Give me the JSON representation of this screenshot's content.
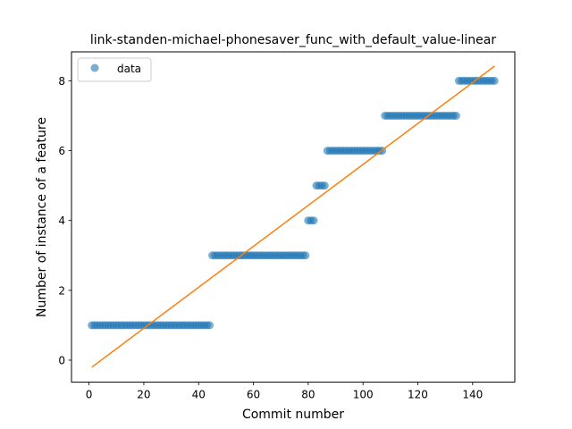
{
  "chart_data": {
    "type": "scatter",
    "title": "link-standen-michael-phonesaver_func_with_default_value-linear",
    "xlabel": "Commit number",
    "ylabel": "Number of instance of a feature",
    "xlim": [
      -6.4,
      155.4
    ],
    "ylim": [
      -0.63,
      8.83
    ],
    "xticks": [
      0,
      20,
      40,
      60,
      80,
      100,
      120,
      140
    ],
    "yticks": [
      0,
      2,
      4,
      6,
      8
    ],
    "legend": {
      "position": "top-left",
      "entries": [
        "data"
      ]
    },
    "grid": false,
    "colors": {
      "data": "#1f77b4",
      "fit": "#ff7f0e"
    },
    "series": [
      {
        "name": "data",
        "kind": "points",
        "segments": [
          {
            "x_from": 1,
            "x_to": 44,
            "y": 1
          },
          {
            "x_from": 45,
            "x_to": 79,
            "y": 3
          },
          {
            "x_from": 80,
            "x_to": 82,
            "y": 4
          },
          {
            "x_from": 83,
            "x_to": 86,
            "y": 5
          },
          {
            "x_from": 87,
            "x_to": 107,
            "y": 6
          },
          {
            "x_from": 108,
            "x_to": 134,
            "y": 7
          },
          {
            "x_from": 135,
            "x_to": 148,
            "y": 8
          }
        ]
      },
      {
        "kind": "line",
        "x": [
          1,
          148
        ],
        "y": [
          -0.2,
          8.42
        ]
      }
    ]
  }
}
